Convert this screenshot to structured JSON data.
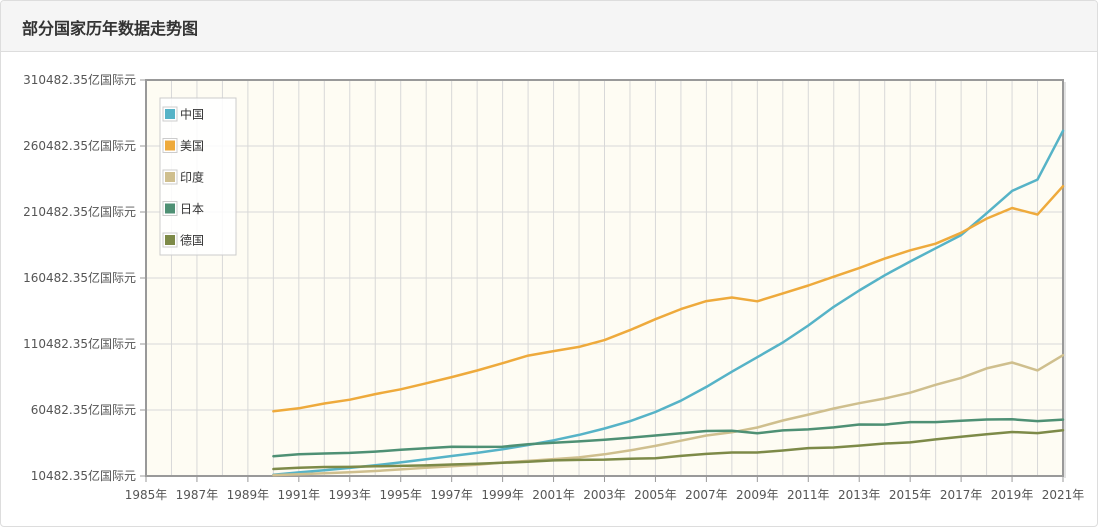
{
  "header": {
    "title": "部分国家历年数据走势图"
  },
  "colors": {
    "plot_background": "#fefcf3",
    "grid": "#d8d8d8",
    "axis": "#999999"
  },
  "chart_data": {
    "type": "line",
    "title": "部分国家历年数据走势图",
    "xlabel": "",
    "ylabel": "",
    "y_unit": "亿国际元",
    "ylim": [
      10482.35,
      310482.35
    ],
    "xlim": [
      1985,
      2021
    ],
    "y_ticks": [
      "10482.35亿国际元",
      "60482.35亿国际元",
      "110482.35亿国际元",
      "160482.35亿国际元",
      "210482.35亿国际元",
      "260482.35亿国际元",
      "310482.35亿国际元"
    ],
    "x_ticks": [
      "1985年",
      "1987年",
      "1989年",
      "1991年",
      "1993年",
      "1995年",
      "1997年",
      "1999年",
      "2001年",
      "2003年",
      "2005年",
      "2007年",
      "2009年",
      "2011年",
      "2013年",
      "2015年",
      "2017年",
      "2019年",
      "2021年"
    ],
    "grid": true,
    "legend_position": "top-left",
    "x": [
      1990,
      1991,
      1992,
      1993,
      1994,
      1995,
      1996,
      1997,
      1998,
      1999,
      2000,
      2001,
      2002,
      2003,
      2004,
      2005,
      2006,
      2007,
      2008,
      2009,
      2010,
      2011,
      2012,
      2013,
      2014,
      2015,
      2016,
      2017,
      2018,
      2019,
      2020,
      2021
    ],
    "series": [
      {
        "name": "中国",
        "color": "#56b3c7",
        "values": [
          11500,
          13200,
          14800,
          16600,
          18600,
          20800,
          23100,
          25600,
          28000,
          30700,
          34000,
          37500,
          41600,
          46500,
          52000,
          59000,
          67500,
          78000,
          89500,
          100500,
          111600,
          124500,
          138700,
          151000,
          162500,
          173000,
          183000,
          193000,
          209500,
          226500,
          235000,
          272000
        ]
      },
      {
        "name": "美国",
        "color": "#eeaa3c",
        "values": [
          59500,
          61800,
          65400,
          68300,
          72500,
          76200,
          80700,
          85400,
          90400,
          95900,
          101700,
          105100,
          108300,
          113400,
          121000,
          129300,
          136900,
          143000,
          145700,
          142800,
          148800,
          154800,
          161500,
          168000,
          175200,
          181500,
          186500,
          194700,
          205500,
          213500,
          208500,
          230000
        ]
      },
      {
        "name": "印度",
        "color": "#cfbf8e",
        "values": [
          11200,
          11800,
          12600,
          13300,
          14300,
          15500,
          16800,
          17800,
          19000,
          20700,
          21900,
          23300,
          24600,
          26900,
          29900,
          33300,
          37200,
          41200,
          43600,
          47200,
          52500,
          57000,
          61600,
          65600,
          69200,
          73600,
          79600,
          84800,
          92000,
          96500,
          90500,
          102000
        ]
      },
      {
        "name": "日本",
        "color": "#4e9074",
        "values": [
          25500,
          27000,
          27500,
          28000,
          29000,
          30300,
          31500,
          32700,
          32500,
          32700,
          34500,
          35700,
          36700,
          38000,
          39500,
          41200,
          42900,
          44600,
          44700,
          42800,
          45000,
          45800,
          47300,
          49500,
          49400,
          51300,
          51300,
          52300,
          53300,
          53400,
          52100,
          53200
        ]
      },
      {
        "name": "德国",
        "color": "#7d8a48",
        "values": [
          15800,
          16800,
          17300,
          17400,
          17800,
          18100,
          18500,
          19200,
          19800,
          20500,
          21300,
          22300,
          22700,
          22900,
          23600,
          24000,
          25700,
          27200,
          28300,
          28300,
          29800,
          31600,
          32100,
          33500,
          35100,
          35900,
          38200,
          40200,
          42100,
          43800,
          43000,
          45200
        ]
      }
    ]
  }
}
